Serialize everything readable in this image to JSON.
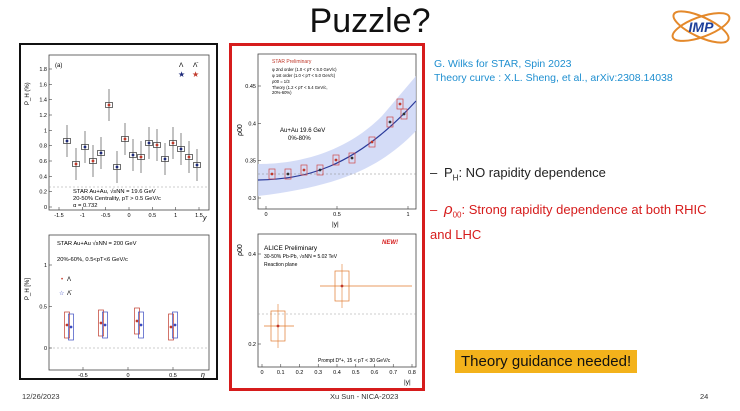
{
  "slide": {
    "title": "Puzzle?",
    "logo_text": "IMP",
    "credit_line1": "G. Wilks for STAR, Spin 2023",
    "credit_line2": "Theory curve : X.L. Sheng, et al., arXiv:2308.14038",
    "bullet1_main": "P",
    "bullet1_sub": "H",
    "bullet1_rest": ": NO rapidity dependence",
    "bullet2_symbol": "ρ",
    "bullet2_sub": "00",
    "bullet2_rest": ": Strong rapidity dependence at both RHIC and LHC",
    "guidance": "Theory guidance needed!",
    "footer_date": "12/26/2023",
    "footer_center": "Xu Sun - NICA-2023",
    "footer_page": "24",
    "dash": "–"
  },
  "panel_a": {
    "tag": "(a)",
    "ylabel": "P_H (%)",
    "xlabel": "y",
    "legend_lambda": "Λ",
    "legend_antilambda": "Λ̄",
    "text1": "STAR Au+Au, √sNN = 19.6 GeV",
    "text2": "20-50% Centrality, pT > 0.5 GeV/c",
    "text3": "α = 0.732",
    "yticks": [
      "0",
      "0.2",
      "0.4",
      "0.6",
      "0.8",
      "1",
      "1.2",
      "1.4",
      "1.6",
      "1.8"
    ],
    "xticks": [
      "-1.5",
      "-1",
      "-0.5",
      "0",
      "0.5",
      "1",
      "1.5"
    ]
  },
  "panel_b": {
    "ylabel": "P_H [%]",
    "xlabel": "η",
    "text1": "STAR Au+Au √sNN = 200 GeV",
    "text2": "20%-60%, 0.5<pT<6 GeV/c",
    "legend_lambda": "Λ",
    "legend_antilambda": "Λ̄",
    "yticks": [
      "0",
      "0.5",
      "1"
    ],
    "xticks": [
      "-0.5",
      "0",
      "0.5"
    ]
  },
  "panel_c": {
    "tag": "STAR Preliminary",
    "legend1": "φ 2nd order (1.0 < pT < 5.0 GeV/c)",
    "legend2": "φ 1st order (1.0 < pT < 5.0 GeV/c)",
    "legend3": "ρ00 = 1/3",
    "legend4": "Theory (1.2 < pT < 5.4 GeV/c,",
    "legend4b": "20%-60%)",
    "system": "Au+Au 19.6 GeV",
    "centrality": "0%-80%",
    "ylabel": "ρ00",
    "xlabel": "|y|",
    "yticks": [
      "0.3",
      "0.35",
      "0.4",
      "0.45"
    ],
    "xticks": [
      "0",
      "0.5",
      "1"
    ]
  },
  "panel_d": {
    "new_badge": "NEW!",
    "title": "ALICE Preliminary",
    "system": "30-50% Pb-Pb, √sNN = 5.02 TeV",
    "plane": "Reaction plane",
    "particle": "Prompt D*+, 15 < pT < 30 GeV/c",
    "ylabel": "ρ00",
    "xlabel": "|y|",
    "yticks": [
      "0.2",
      "0.4"
    ],
    "xticks": [
      "0",
      "0.1",
      "0.2",
      "0.3",
      "0.4",
      "0.5",
      "0.6",
      "0.7",
      "0.8"
    ]
  }
}
